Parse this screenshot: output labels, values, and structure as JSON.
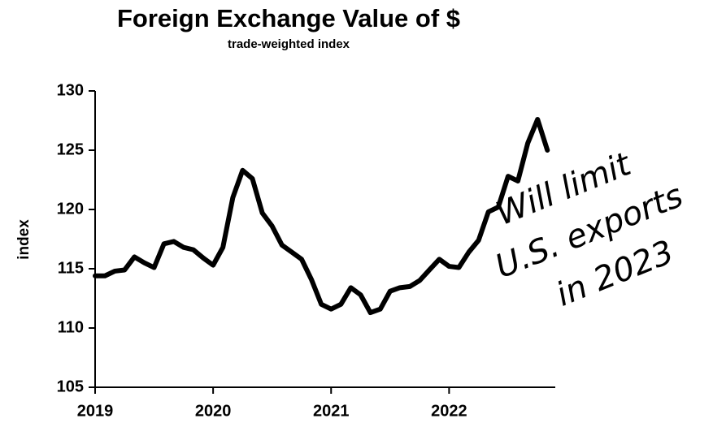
{
  "chart_data": {
    "type": "line",
    "title": "Foreign Exchange Value of $",
    "subtitle": "trade-weighted index",
    "y_label": "index",
    "annotation": [
      "Will limit",
      "U.S. exports",
      "in 2023"
    ],
    "x": [
      2019,
      2019.083,
      2019.167,
      2019.25,
      2019.333,
      2019.417,
      2019.5,
      2019.583,
      2019.667,
      2019.75,
      2019.833,
      2019.917,
      2020,
      2020.083,
      2020.167,
      2020.25,
      2020.333,
      2020.417,
      2020.5,
      2020.583,
      2020.667,
      2020.75,
      2020.833,
      2020.917,
      2021,
      2021.083,
      2021.167,
      2021.25,
      2021.333,
      2021.417,
      2021.5,
      2021.583,
      2021.667,
      2021.75,
      2021.833,
      2021.917,
      2022,
      2022.083,
      2022.167,
      2022.25,
      2022.333,
      2022.417,
      2022.5,
      2022.583,
      2022.667,
      2022.75,
      2022.833
    ],
    "series": [
      {
        "name": "index",
        "color": "#000000",
        "values": [
          114.4,
          114.4,
          114.8,
          114.9,
          116.0,
          115.5,
          115.1,
          117.1,
          117.3,
          116.8,
          116.6,
          115.9,
          115.3,
          116.8,
          121.0,
          123.3,
          122.6,
          119.7,
          118.6,
          117.0,
          116.4,
          115.8,
          114.1,
          112.0,
          111.6,
          112.0,
          113.4,
          112.8,
          111.3,
          111.6,
          113.1,
          113.4,
          113.5,
          114.0,
          114.9,
          115.8,
          115.2,
          115.1,
          116.4,
          117.4,
          119.8,
          120.2,
          122.8,
          122.4,
          125.6,
          127.6,
          125.0
        ]
      }
    ],
    "xlim": [
      2019,
      2022.9
    ],
    "xticks": [
      2019,
      2020,
      2021,
      2022
    ],
    "ylim": [
      105,
      130
    ],
    "yticks": [
      105,
      110,
      115,
      120,
      125,
      130
    ],
    "grid": false
  }
}
